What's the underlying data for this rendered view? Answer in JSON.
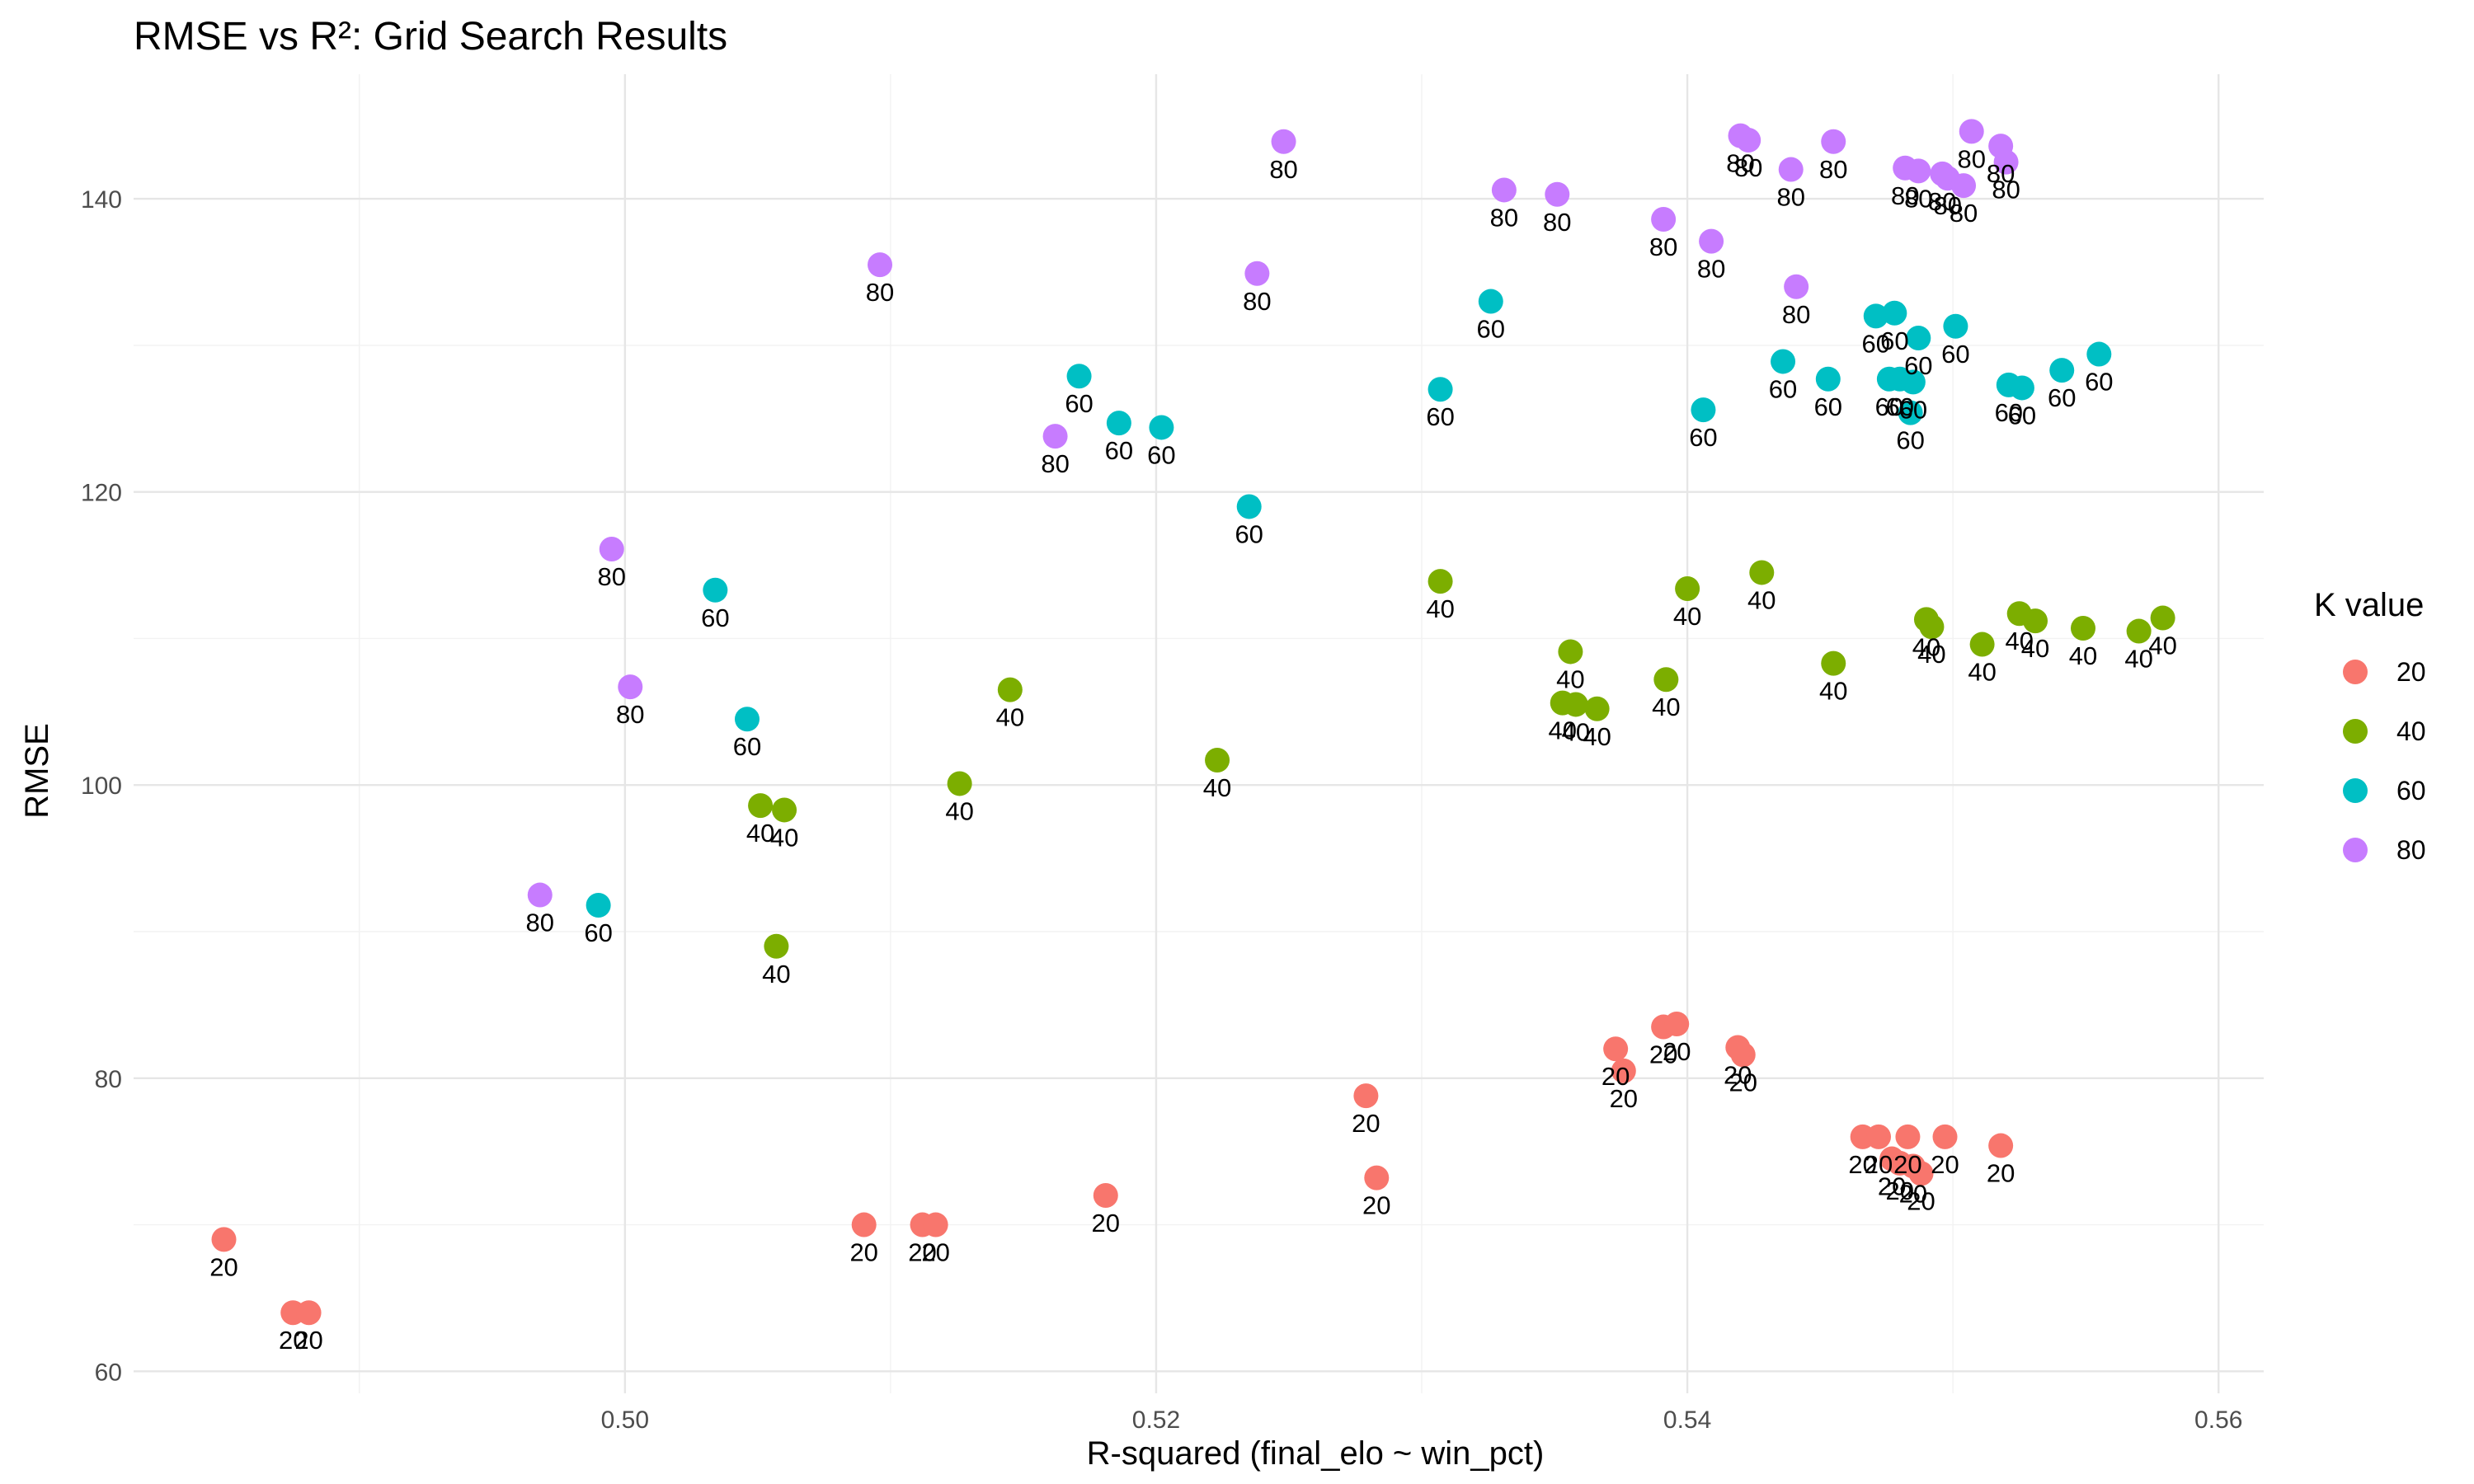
{
  "chart_data": {
    "type": "scatter",
    "title": "RMSE vs R²: Grid Search Results",
    "xlabel": "R-squared (final_elo ~ win_pct)",
    "ylabel": "RMSE",
    "xlim": [
      0.4815,
      0.5617
    ],
    "ylim": [
      58.5,
      148.5
    ],
    "x_ticks": [
      0.5,
      0.52,
      0.54,
      0.56
    ],
    "x_tick_labels": [
      "0.50",
      "0.52",
      "0.54",
      "0.56"
    ],
    "y_ticks": [
      60,
      80,
      100,
      120,
      140
    ],
    "y_tick_labels": [
      "60",
      "80",
      "100",
      "120",
      "140"
    ],
    "grid": true,
    "legend": {
      "title": "K value",
      "position": "right"
    },
    "series": [
      {
        "name": "20",
        "color": "#F8766D",
        "points": [
          [
            0.4849,
            69.0
          ],
          [
            0.4875,
            64.0
          ],
          [
            0.4881,
            64.0
          ],
          [
            0.509,
            70.0
          ],
          [
            0.5112,
            70.0
          ],
          [
            0.5117,
            70.0
          ],
          [
            0.5181,
            72.0
          ],
          [
            0.5279,
            78.8
          ],
          [
            0.5283,
            73.2
          ],
          [
            0.5373,
            82.0
          ],
          [
            0.5376,
            80.5
          ],
          [
            0.5391,
            83.5
          ],
          [
            0.5396,
            83.7
          ],
          [
            0.5419,
            82.1
          ],
          [
            0.5421,
            81.6
          ],
          [
            0.5466,
            76.0
          ],
          [
            0.5472,
            76.0
          ],
          [
            0.5477,
            74.5
          ],
          [
            0.548,
            74.2
          ],
          [
            0.5483,
            76.0
          ],
          [
            0.5485,
            74.0
          ],
          [
            0.5488,
            73.5
          ],
          [
            0.5497,
            76.0
          ],
          [
            0.5518,
            75.4
          ]
        ]
      },
      {
        "name": "40",
        "color": "#7CAE00",
        "points": [
          [
            0.5051,
            98.6
          ],
          [
            0.5057,
            89.0
          ],
          [
            0.506,
            98.3
          ],
          [
            0.5126,
            100.1
          ],
          [
            0.5145,
            106.5
          ],
          [
            0.5223,
            101.7
          ],
          [
            0.5307,
            113.9
          ],
          [
            0.5353,
            105.6
          ],
          [
            0.5356,
            109.1
          ],
          [
            0.5358,
            105.5
          ],
          [
            0.5366,
            105.2
          ],
          [
            0.5392,
            107.2
          ],
          [
            0.54,
            113.4
          ],
          [
            0.5428,
            114.5
          ],
          [
            0.5455,
            108.3
          ],
          [
            0.549,
            111.3
          ],
          [
            0.5492,
            110.8
          ],
          [
            0.5511,
            109.6
          ],
          [
            0.5525,
            111.7
          ],
          [
            0.5531,
            111.2
          ],
          [
            0.5549,
            110.7
          ],
          [
            0.557,
            110.5
          ],
          [
            0.5579,
            111.4
          ]
        ]
      },
      {
        "name": "60",
        "color": "#00BFC4",
        "points": [
          [
            0.499,
            91.8
          ],
          [
            0.5034,
            113.3
          ],
          [
            0.5046,
            104.5
          ],
          [
            0.5171,
            127.9
          ],
          [
            0.5186,
            124.7
          ],
          [
            0.5202,
            124.4
          ],
          [
            0.5235,
            119.0
          ],
          [
            0.5307,
            127.0
          ],
          [
            0.5326,
            133.0
          ],
          [
            0.5406,
            125.6
          ],
          [
            0.5436,
            128.9
          ],
          [
            0.5453,
            127.7
          ],
          [
            0.5471,
            132.0
          ],
          [
            0.5476,
            127.7
          ],
          [
            0.5478,
            132.2
          ],
          [
            0.548,
            127.7
          ],
          [
            0.5484,
            125.4
          ],
          [
            0.5485,
            127.5
          ],
          [
            0.5487,
            130.5
          ],
          [
            0.5501,
            131.3
          ],
          [
            0.5521,
            127.3
          ],
          [
            0.5526,
            127.1
          ],
          [
            0.5541,
            128.3
          ],
          [
            0.5555,
            129.4
          ]
        ]
      },
      {
        "name": "80",
        "color": "#C77CFF",
        "points": [
          [
            0.4968,
            92.5
          ],
          [
            0.4995,
            116.1
          ],
          [
            0.5002,
            106.7
          ],
          [
            0.5096,
            135.5
          ],
          [
            0.5162,
            123.8
          ],
          [
            0.5238,
            134.9
          ],
          [
            0.5248,
            143.9
          ],
          [
            0.5331,
            140.6
          ],
          [
            0.5351,
            140.3
          ],
          [
            0.5391,
            138.6
          ],
          [
            0.5409,
            137.1
          ],
          [
            0.542,
            144.3
          ],
          [
            0.5423,
            144.0
          ],
          [
            0.5439,
            142.0
          ],
          [
            0.5441,
            134.0
          ],
          [
            0.5455,
            143.9
          ],
          [
            0.5482,
            142.1
          ],
          [
            0.5487,
            141.9
          ],
          [
            0.5496,
            141.7
          ],
          [
            0.5498,
            141.4
          ],
          [
            0.5504,
            140.9
          ],
          [
            0.5507,
            144.6
          ],
          [
            0.5518,
            143.6
          ],
          [
            0.552,
            142.5
          ]
        ]
      }
    ]
  }
}
